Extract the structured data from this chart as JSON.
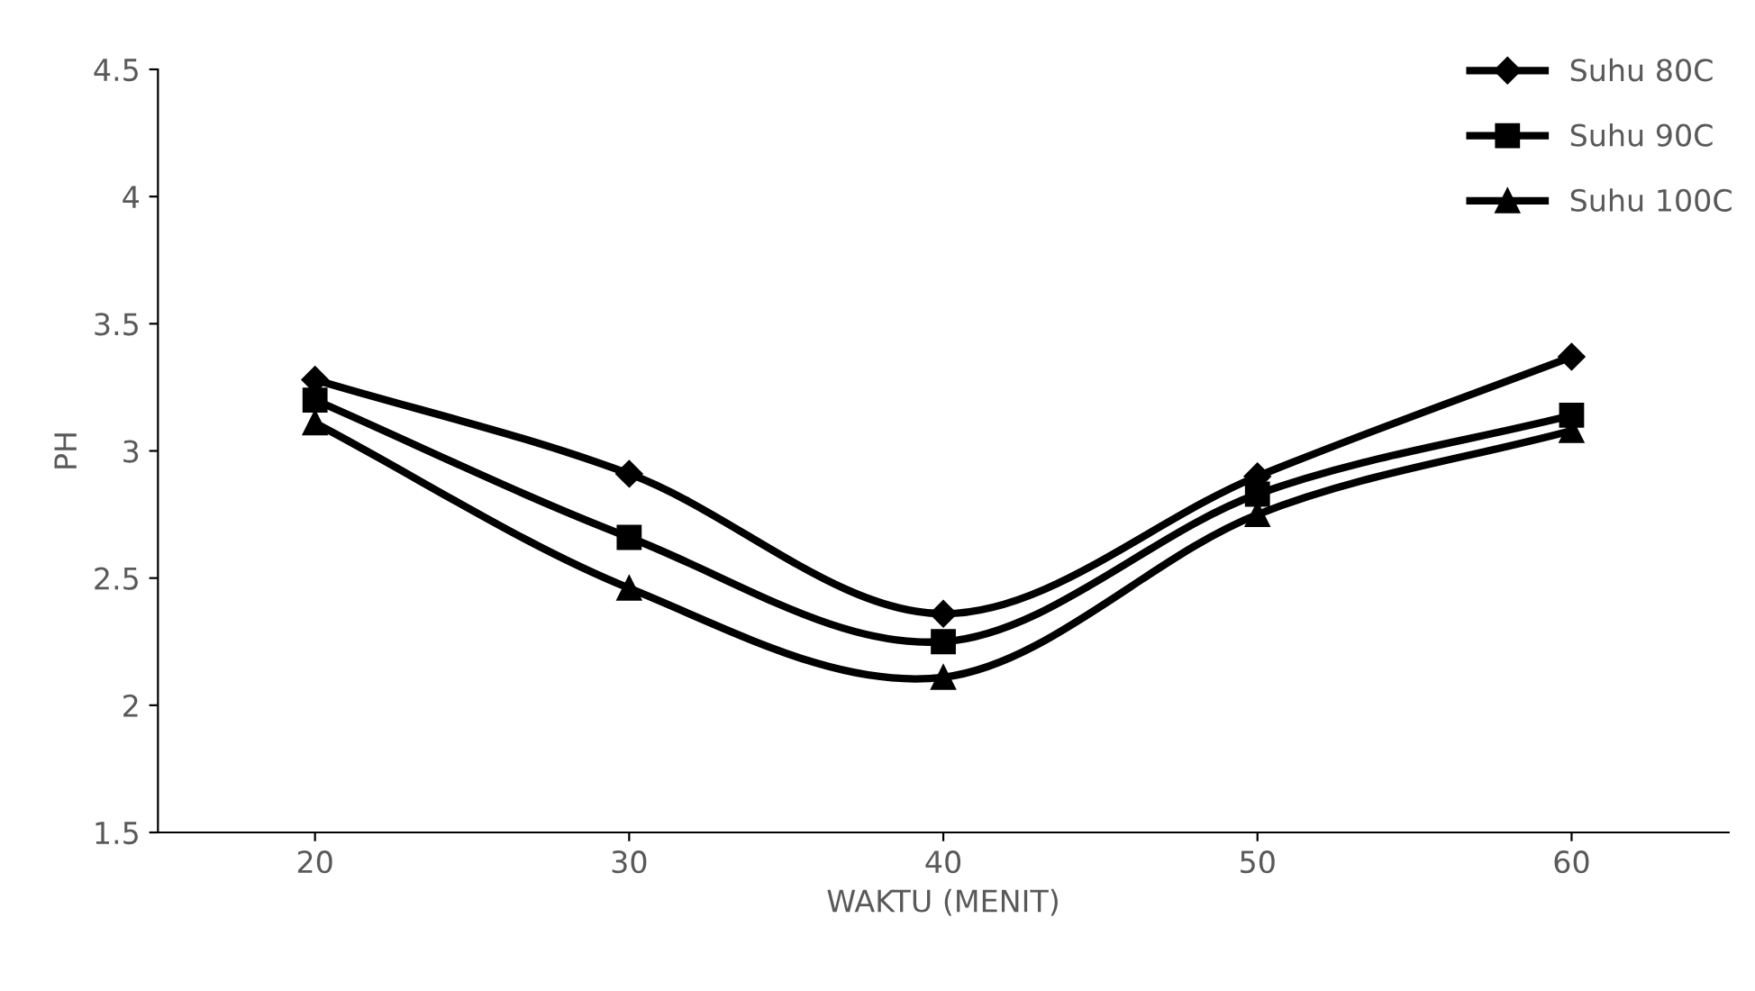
{
  "chart_data": {
    "type": "line",
    "xlabel": "WAKTU (MENIT)",
    "ylabel": "PH",
    "x": [
      20,
      30,
      40,
      50,
      60
    ],
    "series": [
      {
        "name": "Suhu 80C",
        "color": "#000000",
        "marker": "diamond",
        "values": [
          3.28,
          2.91,
          2.36,
          2.9,
          3.37
        ]
      },
      {
        "name": "Suhu 90C",
        "color": "#000000",
        "marker": "square",
        "values": [
          3.2,
          2.66,
          2.25,
          2.83,
          3.14
        ]
      },
      {
        "name": "Suhu 100C",
        "color": "#000000",
        "marker": "triangle",
        "values": [
          3.11,
          2.46,
          2.11,
          2.75,
          3.08
        ]
      }
    ],
    "xlim": [
      15,
      65
    ],
    "xticks": [
      20,
      30,
      40,
      50,
      60
    ],
    "ylim": [
      1.5,
      4.5
    ],
    "yticks": [
      1.5,
      2,
      2.5,
      3,
      3.5,
      4,
      4.5
    ],
    "grid": false,
    "legend": "top right",
    "line_style": "solid"
  }
}
